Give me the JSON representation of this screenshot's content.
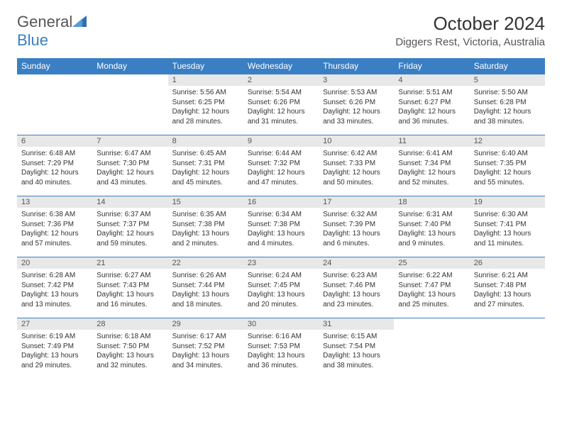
{
  "brand": {
    "part1": "General",
    "part2": "Blue"
  },
  "title": "October 2024",
  "location": "Diggers Rest, Victoria, Australia",
  "colors": {
    "header_bg": "#3a7fc4",
    "header_fg": "#ffffff",
    "daynum_bg": "#e8e8e8",
    "border": "#3a7fc4",
    "text": "#333333"
  },
  "font": {
    "family": "Arial",
    "cell_size_pt": 7.5,
    "header_size_pt": 9
  },
  "days_of_week": [
    "Sunday",
    "Monday",
    "Tuesday",
    "Wednesday",
    "Thursday",
    "Friday",
    "Saturday"
  ],
  "weeks": [
    [
      null,
      null,
      {
        "n": "1",
        "sr": "Sunrise: 5:56 AM",
        "ss": "Sunset: 6:25 PM",
        "d1": "Daylight: 12 hours",
        "d2": "and 28 minutes."
      },
      {
        "n": "2",
        "sr": "Sunrise: 5:54 AM",
        "ss": "Sunset: 6:26 PM",
        "d1": "Daylight: 12 hours",
        "d2": "and 31 minutes."
      },
      {
        "n": "3",
        "sr": "Sunrise: 5:53 AM",
        "ss": "Sunset: 6:26 PM",
        "d1": "Daylight: 12 hours",
        "d2": "and 33 minutes."
      },
      {
        "n": "4",
        "sr": "Sunrise: 5:51 AM",
        "ss": "Sunset: 6:27 PM",
        "d1": "Daylight: 12 hours",
        "d2": "and 36 minutes."
      },
      {
        "n": "5",
        "sr": "Sunrise: 5:50 AM",
        "ss": "Sunset: 6:28 PM",
        "d1": "Daylight: 12 hours",
        "d2": "and 38 minutes."
      }
    ],
    [
      {
        "n": "6",
        "sr": "Sunrise: 6:48 AM",
        "ss": "Sunset: 7:29 PM",
        "d1": "Daylight: 12 hours",
        "d2": "and 40 minutes."
      },
      {
        "n": "7",
        "sr": "Sunrise: 6:47 AM",
        "ss": "Sunset: 7:30 PM",
        "d1": "Daylight: 12 hours",
        "d2": "and 43 minutes."
      },
      {
        "n": "8",
        "sr": "Sunrise: 6:45 AM",
        "ss": "Sunset: 7:31 PM",
        "d1": "Daylight: 12 hours",
        "d2": "and 45 minutes."
      },
      {
        "n": "9",
        "sr": "Sunrise: 6:44 AM",
        "ss": "Sunset: 7:32 PM",
        "d1": "Daylight: 12 hours",
        "d2": "and 47 minutes."
      },
      {
        "n": "10",
        "sr": "Sunrise: 6:42 AM",
        "ss": "Sunset: 7:33 PM",
        "d1": "Daylight: 12 hours",
        "d2": "and 50 minutes."
      },
      {
        "n": "11",
        "sr": "Sunrise: 6:41 AM",
        "ss": "Sunset: 7:34 PM",
        "d1": "Daylight: 12 hours",
        "d2": "and 52 minutes."
      },
      {
        "n": "12",
        "sr": "Sunrise: 6:40 AM",
        "ss": "Sunset: 7:35 PM",
        "d1": "Daylight: 12 hours",
        "d2": "and 55 minutes."
      }
    ],
    [
      {
        "n": "13",
        "sr": "Sunrise: 6:38 AM",
        "ss": "Sunset: 7:36 PM",
        "d1": "Daylight: 12 hours",
        "d2": "and 57 minutes."
      },
      {
        "n": "14",
        "sr": "Sunrise: 6:37 AM",
        "ss": "Sunset: 7:37 PM",
        "d1": "Daylight: 12 hours",
        "d2": "and 59 minutes."
      },
      {
        "n": "15",
        "sr": "Sunrise: 6:35 AM",
        "ss": "Sunset: 7:38 PM",
        "d1": "Daylight: 13 hours",
        "d2": "and 2 minutes."
      },
      {
        "n": "16",
        "sr": "Sunrise: 6:34 AM",
        "ss": "Sunset: 7:38 PM",
        "d1": "Daylight: 13 hours",
        "d2": "and 4 minutes."
      },
      {
        "n": "17",
        "sr": "Sunrise: 6:32 AM",
        "ss": "Sunset: 7:39 PM",
        "d1": "Daylight: 13 hours",
        "d2": "and 6 minutes."
      },
      {
        "n": "18",
        "sr": "Sunrise: 6:31 AM",
        "ss": "Sunset: 7:40 PM",
        "d1": "Daylight: 13 hours",
        "d2": "and 9 minutes."
      },
      {
        "n": "19",
        "sr": "Sunrise: 6:30 AM",
        "ss": "Sunset: 7:41 PM",
        "d1": "Daylight: 13 hours",
        "d2": "and 11 minutes."
      }
    ],
    [
      {
        "n": "20",
        "sr": "Sunrise: 6:28 AM",
        "ss": "Sunset: 7:42 PM",
        "d1": "Daylight: 13 hours",
        "d2": "and 13 minutes."
      },
      {
        "n": "21",
        "sr": "Sunrise: 6:27 AM",
        "ss": "Sunset: 7:43 PM",
        "d1": "Daylight: 13 hours",
        "d2": "and 16 minutes."
      },
      {
        "n": "22",
        "sr": "Sunrise: 6:26 AM",
        "ss": "Sunset: 7:44 PM",
        "d1": "Daylight: 13 hours",
        "d2": "and 18 minutes."
      },
      {
        "n": "23",
        "sr": "Sunrise: 6:24 AM",
        "ss": "Sunset: 7:45 PM",
        "d1": "Daylight: 13 hours",
        "d2": "and 20 minutes."
      },
      {
        "n": "24",
        "sr": "Sunrise: 6:23 AM",
        "ss": "Sunset: 7:46 PM",
        "d1": "Daylight: 13 hours",
        "d2": "and 23 minutes."
      },
      {
        "n": "25",
        "sr": "Sunrise: 6:22 AM",
        "ss": "Sunset: 7:47 PM",
        "d1": "Daylight: 13 hours",
        "d2": "and 25 minutes."
      },
      {
        "n": "26",
        "sr": "Sunrise: 6:21 AM",
        "ss": "Sunset: 7:48 PM",
        "d1": "Daylight: 13 hours",
        "d2": "and 27 minutes."
      }
    ],
    [
      {
        "n": "27",
        "sr": "Sunrise: 6:19 AM",
        "ss": "Sunset: 7:49 PM",
        "d1": "Daylight: 13 hours",
        "d2": "and 29 minutes."
      },
      {
        "n": "28",
        "sr": "Sunrise: 6:18 AM",
        "ss": "Sunset: 7:50 PM",
        "d1": "Daylight: 13 hours",
        "d2": "and 32 minutes."
      },
      {
        "n": "29",
        "sr": "Sunrise: 6:17 AM",
        "ss": "Sunset: 7:52 PM",
        "d1": "Daylight: 13 hours",
        "d2": "and 34 minutes."
      },
      {
        "n": "30",
        "sr": "Sunrise: 6:16 AM",
        "ss": "Sunset: 7:53 PM",
        "d1": "Daylight: 13 hours",
        "d2": "and 36 minutes."
      },
      {
        "n": "31",
        "sr": "Sunrise: 6:15 AM",
        "ss": "Sunset: 7:54 PM",
        "d1": "Daylight: 13 hours",
        "d2": "and 38 minutes."
      },
      null,
      null
    ]
  ]
}
